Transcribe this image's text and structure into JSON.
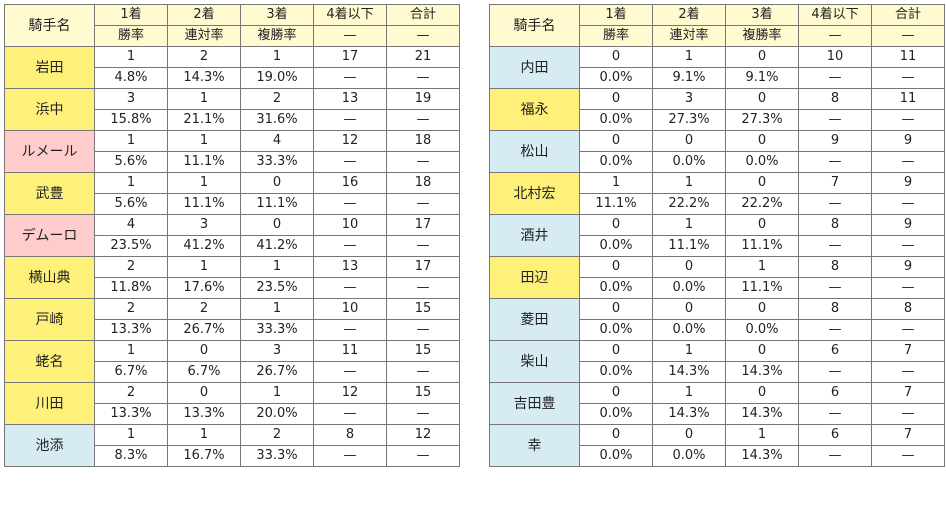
{
  "header": {
    "jockey_label": "騎手名",
    "col1_top": "1着",
    "col1_bottom": "勝率",
    "col2_top": "2着",
    "col2_bottom": "連対率",
    "col3_top": "3着",
    "col3_bottom": "複勝率",
    "col4_top": "4着以下",
    "col4_bottom": "—",
    "col5_top": "合計",
    "col5_bottom": "—"
  },
  "colors": {
    "yellow": "#fff07a",
    "pink": "#ffcccc",
    "blue": "#d6ebf2",
    "header": "#fffad0"
  },
  "left": [
    {
      "name": "岩田",
      "color": "yellow",
      "w1": "1",
      "w2": "2",
      "w3": "1",
      "w4": "17",
      "total": "21",
      "r1": "4.8%",
      "r2": "14.3%",
      "r3": "19.0%",
      "r4": "—",
      "r5": "—"
    },
    {
      "name": "浜中",
      "color": "yellow",
      "w1": "3",
      "w2": "1",
      "w3": "2",
      "w4": "13",
      "total": "19",
      "r1": "15.8%",
      "r2": "21.1%",
      "r3": "31.6%",
      "r4": "—",
      "r5": "—"
    },
    {
      "name": "ルメール",
      "color": "pink",
      "w1": "1",
      "w2": "1",
      "w3": "4",
      "w4": "12",
      "total": "18",
      "r1": "5.6%",
      "r2": "11.1%",
      "r3": "33.3%",
      "r4": "—",
      "r5": "—"
    },
    {
      "name": "武豊",
      "color": "yellow",
      "w1": "1",
      "w2": "1",
      "w3": "0",
      "w4": "16",
      "total": "18",
      "r1": "5.6%",
      "r2": "11.1%",
      "r3": "11.1%",
      "r4": "—",
      "r5": "—"
    },
    {
      "name": "デムーロ",
      "color": "pink",
      "w1": "4",
      "w2": "3",
      "w3": "0",
      "w4": "10",
      "total": "17",
      "r1": "23.5%",
      "r2": "41.2%",
      "r3": "41.2%",
      "r4": "—",
      "r5": "—"
    },
    {
      "name": "横山典",
      "color": "yellow",
      "w1": "2",
      "w2": "1",
      "w3": "1",
      "w4": "13",
      "total": "17",
      "r1": "11.8%",
      "r2": "17.6%",
      "r3": "23.5%",
      "r4": "—",
      "r5": "—"
    },
    {
      "name": "戸崎",
      "color": "yellow",
      "w1": "2",
      "w2": "2",
      "w3": "1",
      "w4": "10",
      "total": "15",
      "r1": "13.3%",
      "r2": "26.7%",
      "r3": "33.3%",
      "r4": "—",
      "r5": "—"
    },
    {
      "name": "蛯名",
      "color": "yellow",
      "w1": "1",
      "w2": "0",
      "w3": "3",
      "w4": "11",
      "total": "15",
      "r1": "6.7%",
      "r2": "6.7%",
      "r3": "26.7%",
      "r4": "—",
      "r5": "—"
    },
    {
      "name": "川田",
      "color": "yellow",
      "w1": "2",
      "w2": "0",
      "w3": "1",
      "w4": "12",
      "total": "15",
      "r1": "13.3%",
      "r2": "13.3%",
      "r3": "20.0%",
      "r4": "—",
      "r5": "—"
    },
    {
      "name": "池添",
      "color": "blue",
      "w1": "1",
      "w2": "1",
      "w3": "2",
      "w4": "8",
      "total": "12",
      "r1": "8.3%",
      "r2": "16.7%",
      "r3": "33.3%",
      "r4": "—",
      "r5": "—"
    }
  ],
  "right": [
    {
      "name": "内田",
      "color": "blue",
      "w1": "0",
      "w2": "1",
      "w3": "0",
      "w4": "10",
      "total": "11",
      "r1": "0.0%",
      "r2": "9.1%",
      "r3": "9.1%",
      "r4": "—",
      "r5": "—"
    },
    {
      "name": "福永",
      "color": "yellow",
      "w1": "0",
      "w2": "3",
      "w3": "0",
      "w4": "8",
      "total": "11",
      "r1": "0.0%",
      "r2": "27.3%",
      "r3": "27.3%",
      "r4": "—",
      "r5": "—"
    },
    {
      "name": "松山",
      "color": "blue",
      "w1": "0",
      "w2": "0",
      "w3": "0",
      "w4": "9",
      "total": "9",
      "r1": "0.0%",
      "r2": "0.0%",
      "r3": "0.0%",
      "r4": "—",
      "r5": "—"
    },
    {
      "name": "北村宏",
      "color": "yellow",
      "w1": "1",
      "w2": "1",
      "w3": "0",
      "w4": "7",
      "total": "9",
      "r1": "11.1%",
      "r2": "22.2%",
      "r3": "22.2%",
      "r4": "—",
      "r5": "—"
    },
    {
      "name": "酒井",
      "color": "blue",
      "w1": "0",
      "w2": "1",
      "w3": "0",
      "w4": "8",
      "total": "9",
      "r1": "0.0%",
      "r2": "11.1%",
      "r3": "11.1%",
      "r4": "—",
      "r5": "—"
    },
    {
      "name": "田辺",
      "color": "yellow",
      "w1": "0",
      "w2": "0",
      "w3": "1",
      "w4": "8",
      "total": "9",
      "r1": "0.0%",
      "r2": "0.0%",
      "r3": "11.1%",
      "r4": "—",
      "r5": "—"
    },
    {
      "name": "菱田",
      "color": "blue",
      "w1": "0",
      "w2": "0",
      "w3": "0",
      "w4": "8",
      "total": "8",
      "r1": "0.0%",
      "r2": "0.0%",
      "r3": "0.0%",
      "r4": "—",
      "r5": "—"
    },
    {
      "name": "柴山",
      "color": "blue",
      "w1": "0",
      "w2": "1",
      "w3": "0",
      "w4": "6",
      "total": "7",
      "r1": "0.0%",
      "r2": "14.3%",
      "r3": "14.3%",
      "r4": "—",
      "r5": "—"
    },
    {
      "name": "吉田豊",
      "color": "blue",
      "w1": "0",
      "w2": "1",
      "w3": "0",
      "w4": "6",
      "total": "7",
      "r1": "0.0%",
      "r2": "14.3%",
      "r3": "14.3%",
      "r4": "—",
      "r5": "—"
    },
    {
      "name": "幸",
      "color": "blue",
      "w1": "0",
      "w2": "0",
      "w3": "1",
      "w4": "6",
      "total": "7",
      "r1": "0.0%",
      "r2": "0.0%",
      "r3": "14.3%",
      "r4": "—",
      "r5": "—"
    }
  ]
}
